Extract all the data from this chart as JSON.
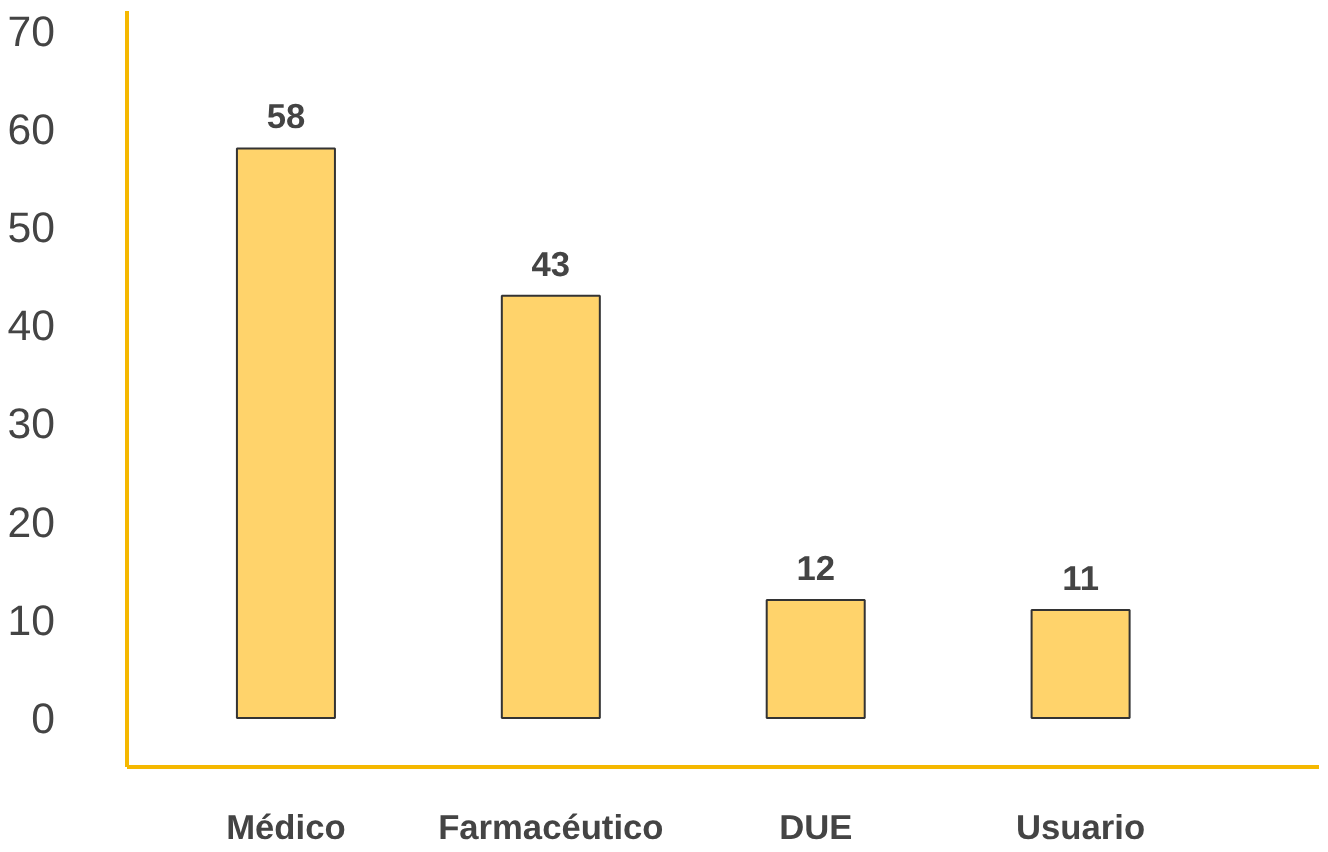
{
  "chart_data": {
    "type": "bar",
    "categories": [
      "Médico",
      "Farmacéutico",
      "DUE",
      "Usuario"
    ],
    "values": [
      58,
      43,
      12,
      11
    ],
    "color": "#ffd36b",
    "data_labels": true,
    "ylim": [
      -5,
      72
    ],
    "yticks": [
      0,
      10,
      20,
      30,
      40,
      50,
      60,
      70
    ],
    "grid": false
  }
}
